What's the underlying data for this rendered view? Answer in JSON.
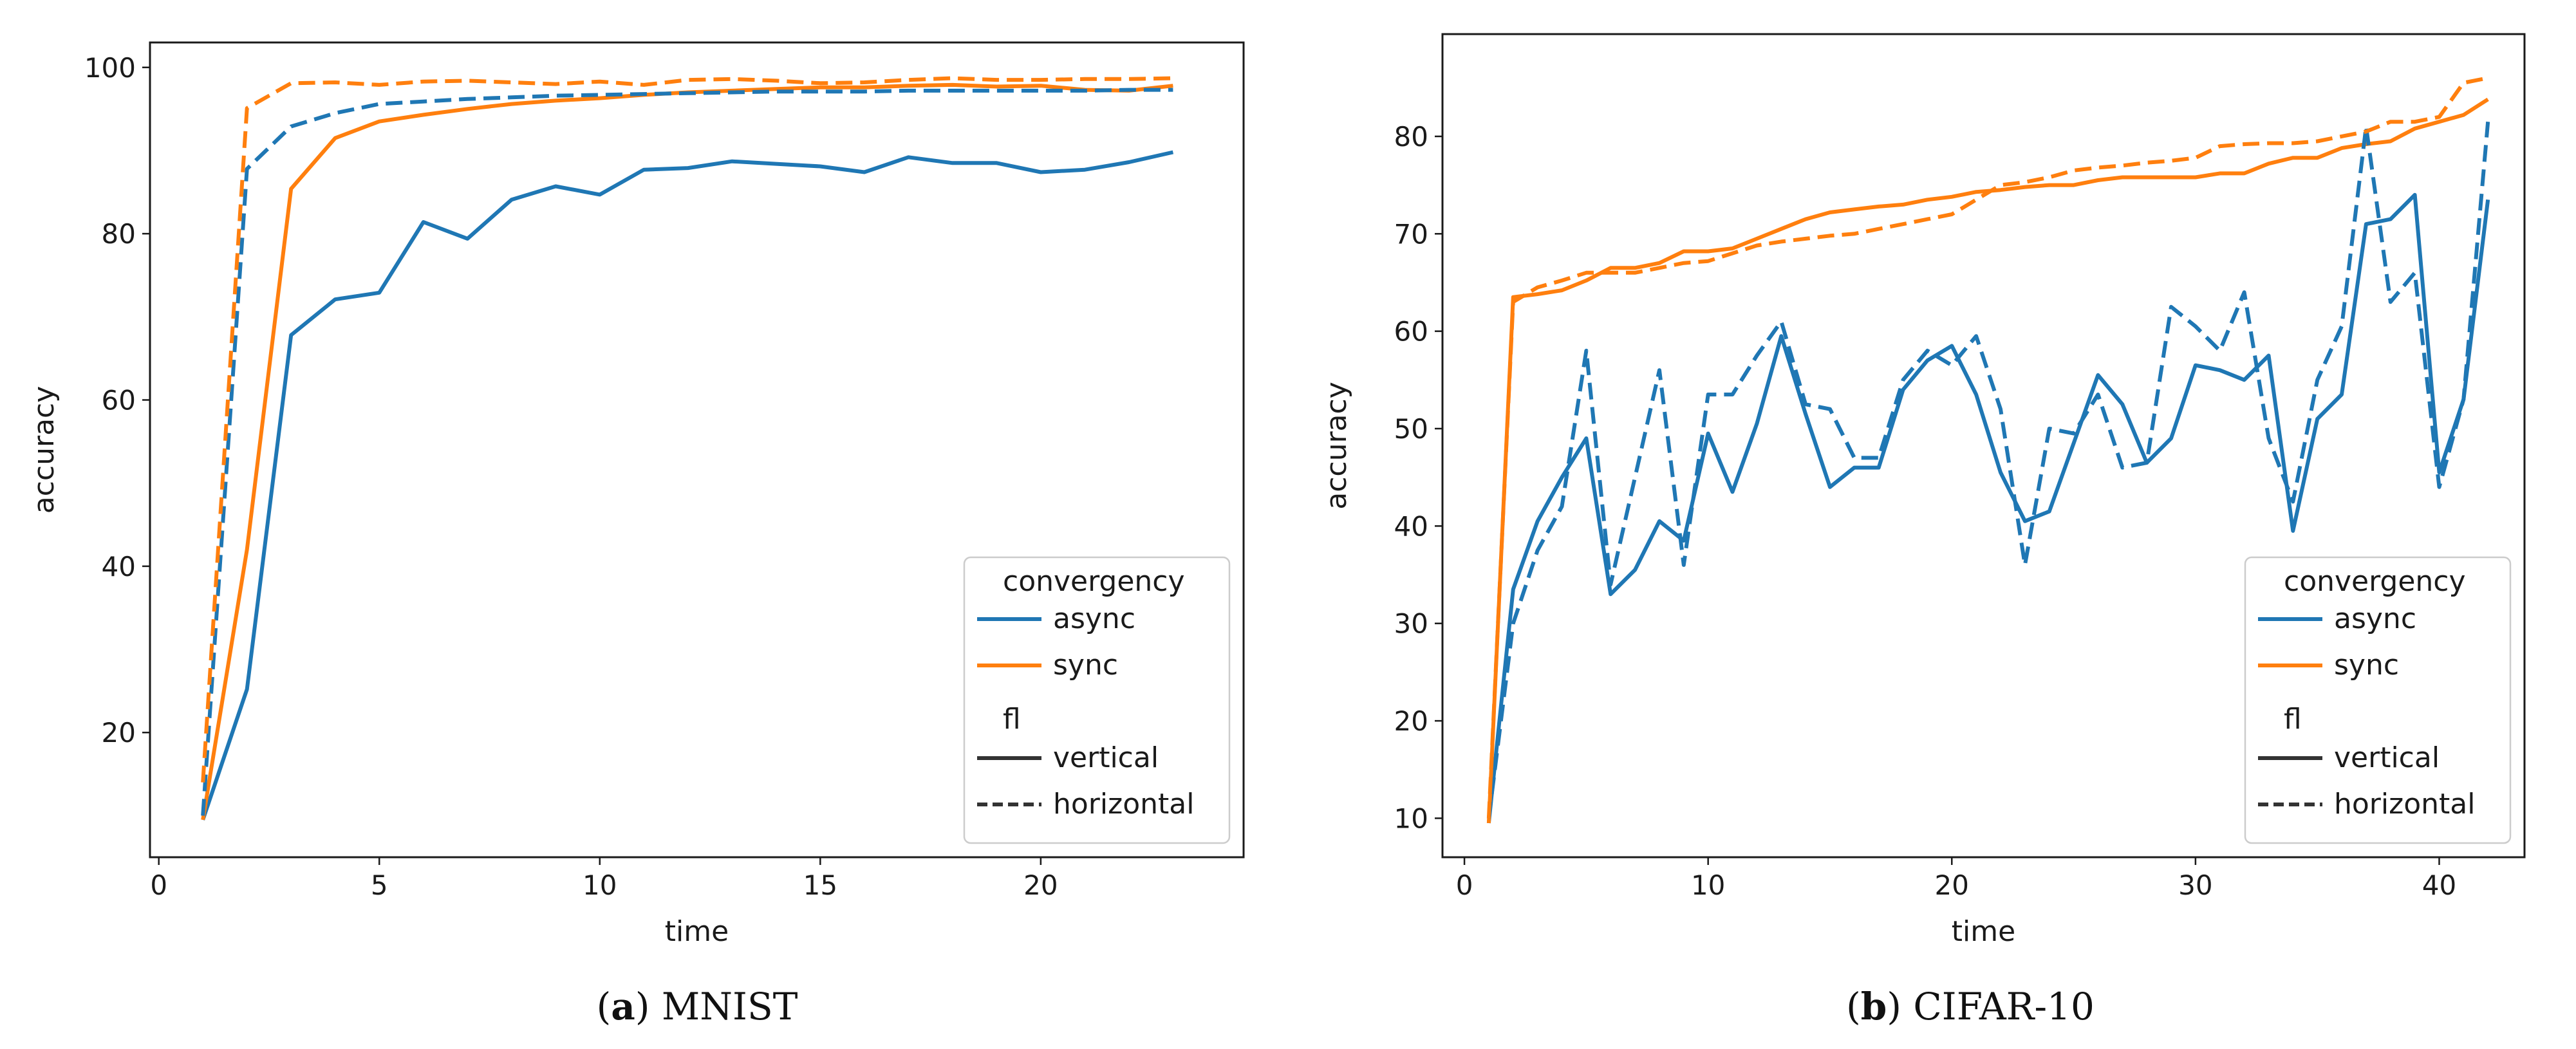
{
  "chart_data": [
    {
      "type": "line",
      "panel_label": "(a)",
      "panel_letter": "a",
      "caption": "MNIST",
      "title": "",
      "xlabel": "time",
      "ylabel": "accuracy",
      "xlim": [
        -0.2,
        24.6
      ],
      "ylim": [
        5,
        103
      ],
      "xticks": [
        0,
        5,
        10,
        15,
        20
      ],
      "yticks": [
        20,
        40,
        60,
        80,
        100
      ],
      "grid": false,
      "legend": {
        "position": "lower-right",
        "hue_title": "convergency",
        "hue_items": [
          "async",
          "sync"
        ],
        "style_title": "fl",
        "style_items": [
          "vertical",
          "horizontal"
        ]
      },
      "series": [
        {
          "name": "async vertical",
          "convergency": "async",
          "fl": "vertical",
          "color": "#1f77b4",
          "dash": "solid",
          "x": [
            1,
            2,
            3,
            4,
            5,
            6,
            7,
            8,
            9,
            10,
            11,
            12,
            13,
            14,
            15,
            16,
            17,
            18,
            19,
            20,
            21,
            22,
            23
          ],
          "values": [
            9.5,
            25.2,
            67.8,
            72.1,
            72.9,
            81.4,
            79.4,
            84.1,
            85.7,
            84.7,
            87.7,
            87.9,
            88.7,
            88.4,
            88.1,
            87.4,
            89.2,
            88.5,
            88.5,
            87.4,
            87.7,
            88.6,
            89.8
          ]
        },
        {
          "name": "sync vertical",
          "convergency": "sync",
          "fl": "vertical",
          "color": "#ff7f0e",
          "dash": "solid",
          "x": [
            1,
            2,
            3,
            4,
            5,
            6,
            7,
            8,
            9,
            10,
            11,
            12,
            13,
            14,
            15,
            16,
            17,
            18,
            19,
            20,
            21,
            22,
            23
          ],
          "values": [
            9.5,
            42.0,
            85.4,
            91.5,
            93.5,
            94.3,
            95.0,
            95.6,
            96.0,
            96.3,
            96.7,
            97.0,
            97.2,
            97.4,
            97.6,
            97.6,
            97.8,
            97.9,
            97.7,
            97.8,
            97.3,
            97.2,
            97.8
          ]
        },
        {
          "name": "async horizontal",
          "convergency": "async",
          "fl": "horizontal",
          "color": "#1f77b4",
          "dash": "dashed",
          "x": [
            1,
            2,
            3,
            4,
            5,
            6,
            7,
            8,
            9,
            10,
            11,
            12,
            13,
            14,
            15,
            16,
            17,
            18,
            19,
            20,
            21,
            22,
            23
          ],
          "values": [
            10.0,
            87.8,
            92.9,
            94.5,
            95.6,
            95.9,
            96.2,
            96.4,
            96.6,
            96.7,
            96.8,
            96.9,
            97.0,
            97.1,
            97.1,
            97.1,
            97.2,
            97.2,
            97.2,
            97.2,
            97.2,
            97.3,
            97.3
          ]
        },
        {
          "name": "sync horizontal",
          "convergency": "sync",
          "fl": "horizontal",
          "color": "#ff7f0e",
          "dash": "dashed",
          "x": [
            1,
            2,
            3,
            4,
            5,
            6,
            7,
            8,
            9,
            10,
            11,
            12,
            13,
            14,
            15,
            16,
            17,
            18,
            19,
            20,
            21,
            22,
            23
          ],
          "values": [
            14.0,
            95.1,
            98.1,
            98.2,
            97.9,
            98.3,
            98.4,
            98.2,
            98.0,
            98.3,
            97.9,
            98.5,
            98.6,
            98.4,
            98.1,
            98.2,
            98.5,
            98.7,
            98.5,
            98.5,
            98.6,
            98.6,
            98.7
          ]
        }
      ]
    },
    {
      "type": "line",
      "panel_label": "(b)",
      "panel_letter": "b",
      "caption": "CIFAR-10",
      "title": "",
      "xlabel": "time",
      "ylabel": "accuracy",
      "xlim": [
        -0.9,
        43.5
      ],
      "ylim": [
        6,
        90.5
      ],
      "xticks": [
        0,
        10,
        20,
        30,
        40
      ],
      "yticks": [
        10,
        20,
        30,
        40,
        50,
        60,
        70,
        80
      ],
      "grid": false,
      "legend": {
        "position": "lower-right",
        "hue_title": "convergency",
        "hue_items": [
          "async",
          "sync"
        ],
        "style_title": "fl",
        "style_items": [
          "vertical",
          "horizontal"
        ]
      },
      "series": [
        {
          "name": "async vertical",
          "convergency": "async",
          "fl": "vertical",
          "color": "#1f77b4",
          "dash": "solid",
          "x": [
            1,
            2,
            3,
            4,
            5,
            6,
            7,
            8,
            9,
            10,
            11,
            12,
            13,
            14,
            15,
            16,
            17,
            18,
            19,
            20,
            21,
            22,
            23,
            24,
            25,
            26,
            27,
            28,
            29,
            30,
            31,
            32,
            33,
            34,
            35,
            36,
            37,
            38,
            39,
            40,
            41,
            42
          ],
          "values": [
            9.5,
            33.5,
            40.5,
            45.0,
            49.0,
            33.0,
            35.5,
            40.5,
            38.5,
            49.5,
            43.5,
            50.5,
            59.5,
            51.5,
            44.0,
            46.0,
            46.0,
            54.0,
            57.0,
            58.5,
            53.5,
            45.5,
            40.5,
            41.5,
            48.5,
            55.5,
            52.5,
            46.5,
            49.0,
            56.5,
            56.0,
            55.0,
            57.5,
            39.5,
            51.0,
            53.5,
            71.0,
            71.5,
            74.0,
            45.5,
            53.0,
            73.5
          ]
        },
        {
          "name": "sync vertical",
          "convergency": "sync",
          "fl": "vertical",
          "color": "#ff7f0e",
          "dash": "solid",
          "x": [
            1,
            2,
            3,
            4,
            5,
            6,
            7,
            8,
            9,
            10,
            11,
            12,
            13,
            14,
            15,
            16,
            17,
            18,
            19,
            20,
            21,
            22,
            23,
            24,
            25,
            26,
            27,
            28,
            29,
            30,
            31,
            32,
            33,
            34,
            35,
            36,
            37,
            38,
            39,
            40,
            41,
            42
          ],
          "values": [
            9.5,
            63.5,
            63.8,
            64.2,
            65.2,
            66.5,
            66.5,
            67.0,
            68.2,
            68.2,
            68.5,
            69.5,
            70.5,
            71.5,
            72.2,
            72.5,
            72.8,
            73.0,
            73.5,
            73.8,
            74.3,
            74.5,
            74.8,
            75.0,
            75.0,
            75.5,
            75.8,
            75.8,
            75.8,
            75.8,
            76.2,
            76.2,
            77.2,
            77.8,
            77.8,
            78.8,
            79.2,
            79.5,
            80.8,
            81.5,
            82.2,
            83.8
          ]
        },
        {
          "name": "async horizontal",
          "convergency": "async",
          "fl": "horizontal",
          "color": "#1f77b4",
          "dash": "dashed",
          "x": [
            1,
            2,
            3,
            4,
            5,
            6,
            7,
            8,
            9,
            10,
            11,
            12,
            13,
            14,
            15,
            16,
            17,
            18,
            19,
            20,
            21,
            22,
            23,
            24,
            25,
            26,
            27,
            28,
            29,
            30,
            31,
            32,
            33,
            34,
            35,
            36,
            37,
            38,
            39,
            40,
            41,
            42
          ],
          "values": [
            10.0,
            30.0,
            37.5,
            42.0,
            58.0,
            34.0,
            45.0,
            56.0,
            36.0,
            53.5,
            53.5,
            57.5,
            61.0,
            52.5,
            52.0,
            47.0,
            47.0,
            55.0,
            58.0,
            56.5,
            59.5,
            52.0,
            36.0,
            50.0,
            49.5,
            53.5,
            46.0,
            46.5,
            62.5,
            60.5,
            58.0,
            64.0,
            49.0,
            42.5,
            55.0,
            60.5,
            81.0,
            63.0,
            66.0,
            44.0,
            53.0,
            81.5
          ]
        },
        {
          "name": "sync horizontal",
          "convergency": "sync",
          "fl": "horizontal",
          "color": "#ff7f0e",
          "dash": "dashed",
          "x": [
            1,
            2,
            3,
            4,
            5,
            6,
            7,
            8,
            9,
            10,
            11,
            12,
            13,
            14,
            15,
            16,
            17,
            18,
            19,
            20,
            21,
            22,
            23,
            24,
            25,
            26,
            27,
            28,
            29,
            30,
            31,
            32,
            33,
            34,
            35,
            36,
            37,
            38,
            39,
            40,
            41,
            42
          ],
          "values": [
            10.0,
            63.0,
            64.5,
            65.2,
            66.0,
            66.0,
            66.0,
            66.5,
            67.0,
            67.2,
            68.0,
            68.8,
            69.2,
            69.5,
            69.8,
            70.0,
            70.5,
            71.0,
            71.5,
            72.0,
            73.5,
            75.0,
            75.3,
            75.8,
            76.5,
            76.8,
            77.0,
            77.3,
            77.5,
            77.8,
            79.0,
            79.2,
            79.3,
            79.3,
            79.5,
            80.0,
            80.5,
            81.5,
            81.5,
            82.0,
            85.5,
            86.0
          ]
        }
      ]
    }
  ]
}
